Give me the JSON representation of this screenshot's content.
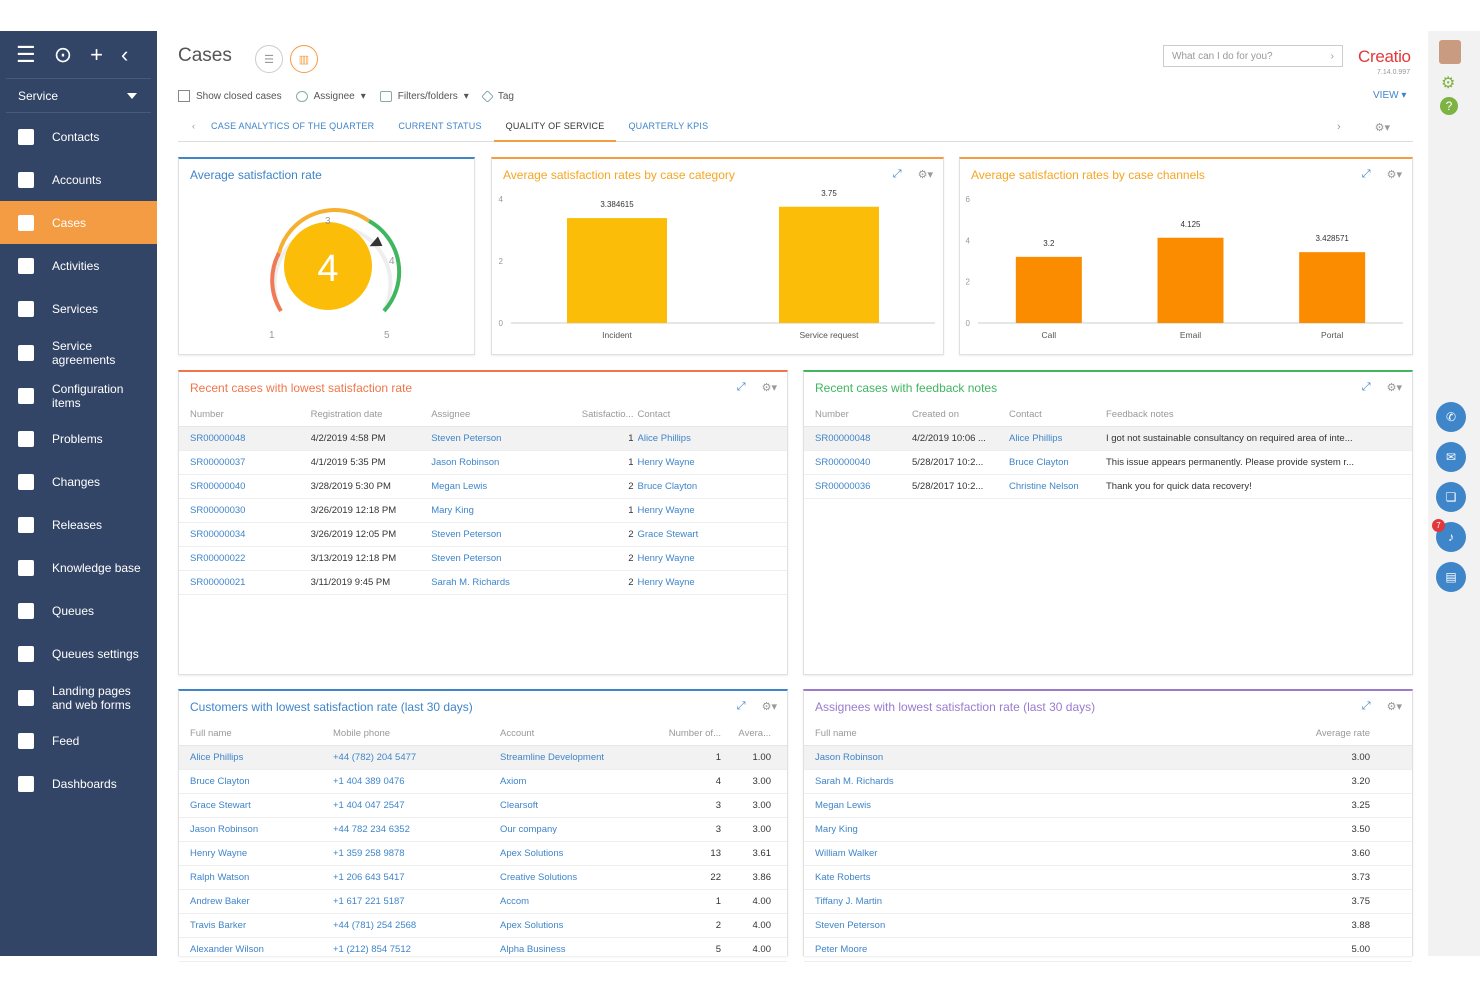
{
  "sidebar": {
    "workplace": "Service",
    "items": [
      {
        "label": "Contacts",
        "icon": "user-icon"
      },
      {
        "label": "Accounts",
        "icon": "building-icon"
      },
      {
        "label": "Cases",
        "icon": "exclamation-icon"
      },
      {
        "label": "Activities",
        "icon": "flag-icon"
      },
      {
        "label": "Services",
        "icon": "clipboard-icon"
      },
      {
        "label": "Service agreements",
        "icon": "document-icon"
      },
      {
        "label": "Configuration items",
        "icon": "blocks-icon"
      },
      {
        "label": "Problems",
        "icon": "search-chat-icon"
      },
      {
        "label": "Changes",
        "icon": "edit-icon"
      },
      {
        "label": "Releases",
        "icon": "docs-icon"
      },
      {
        "label": "Knowledge base",
        "icon": "book-icon"
      },
      {
        "label": "Queues",
        "icon": "queue-icon"
      },
      {
        "label": "Queues settings",
        "icon": "queue-settings-icon"
      },
      {
        "label": "Landing pages and web forms",
        "icon": "target-icon"
      },
      {
        "label": "Feed",
        "icon": "chat-icon"
      },
      {
        "label": "Dashboards",
        "icon": "bar-chart-icon"
      }
    ],
    "active": "Cases"
  },
  "header": {
    "title": "Cases",
    "search_placeholder": "What can I do for you?",
    "logo": "Creatio",
    "version": "7.14.0.997",
    "view": "VIEW"
  },
  "filters": {
    "show_closed": "Show closed cases",
    "assignee": "Assignee",
    "filters_folders": "Filters/folders",
    "tag": "Tag"
  },
  "tabs": [
    "CASE ANALYTICS OF THE QUARTER",
    "CURRENT STATUS",
    "QUALITY OF SERVICE",
    "QUARTERLY KPIS"
  ],
  "active_tab": "QUALITY OF SERVICE",
  "gauge": {
    "title": "Average satisfaction rate",
    "value": "4",
    "ticks": [
      "1",
      "3",
      "4",
      "5"
    ],
    "fraction": 0.75
  },
  "chart1": {
    "title": "Average satisfaction rates by case category"
  },
  "chart2": {
    "title": "Average satisfaction rates by case channels"
  },
  "chart_data": [
    {
      "type": "bar",
      "title": "Average satisfaction rates by case category",
      "categories": [
        "Incident",
        "Service request"
      ],
      "values": [
        3.384615,
        3.75
      ],
      "labels": [
        "3.384615",
        "3.75"
      ],
      "yticks": [
        "0",
        "2",
        "4"
      ],
      "ylim": [
        0,
        4
      ],
      "color": "#fbbd08"
    },
    {
      "type": "bar",
      "title": "Average satisfaction rates by case channels",
      "categories": [
        "Call",
        "Email",
        "Portal"
      ],
      "values": [
        3.2,
        4.125,
        3.428571
      ],
      "labels": [
        "3.2",
        "4.125",
        "3.428571"
      ],
      "yticks": [
        "0",
        "2",
        "4",
        "6"
      ],
      "ylim": [
        0,
        6
      ],
      "color": "#fb8c00"
    }
  ],
  "recent_cases": {
    "title": "Recent cases with lowest satisfaction rate",
    "headers": [
      "Number",
      "Registration date",
      "Assignee",
      "Satisfactio...",
      "Contact"
    ],
    "rows": [
      [
        "SR00000048",
        "4/2/2019 4:58 PM",
        "Steven Peterson",
        "1",
        "Alice Phillips"
      ],
      [
        "SR00000037",
        "4/1/2019 5:35 PM",
        "Jason Robinson",
        "1",
        "Henry Wayne"
      ],
      [
        "SR00000040",
        "3/28/2019 5:30 PM",
        "Megan Lewis",
        "2",
        "Bruce Clayton"
      ],
      [
        "SR00000030",
        "3/26/2019 12:18 PM",
        "Mary King",
        "1",
        "Henry Wayne"
      ],
      [
        "SR00000034",
        "3/26/2019 12:05 PM",
        "Steven Peterson",
        "2",
        "Grace Stewart"
      ],
      [
        "SR00000022",
        "3/13/2019 12:18 PM",
        "Steven Peterson",
        "2",
        "Henry Wayne"
      ],
      [
        "SR00000021",
        "3/11/2019 9:45 PM",
        "Sarah M. Richards",
        "2",
        "Henry Wayne"
      ]
    ]
  },
  "feedback": {
    "title": "Recent cases with feedback notes",
    "headers": [
      "Number",
      "Created on",
      "Contact",
      "Feedback notes"
    ],
    "rows": [
      [
        "SR00000048",
        "4/2/2019 10:06 ...",
        "Alice Phillips",
        "I got not sustainable consultancy on required area of inte..."
      ],
      [
        "SR00000040",
        "5/28/2017 10:2...",
        "Bruce Clayton",
        "This issue appears permanently. Please provide system r..."
      ],
      [
        "SR00000036",
        "5/28/2017 10:2...",
        "Christine Nelson",
        "Thank you for quick data recovery!"
      ]
    ]
  },
  "customers": {
    "title": "Customers with lowest satisfaction rate (last 30 days)",
    "headers": [
      "Full name",
      "Mobile phone",
      "Account",
      "Number of...",
      "Avera..."
    ],
    "rows": [
      [
        "Alice Phillips",
        "+44 (782) 204 5477",
        "Streamline Development",
        "1",
        "1.00"
      ],
      [
        "Bruce Clayton",
        "+1 404 389 0476",
        "Axiom",
        "4",
        "3.00"
      ],
      [
        "Grace Stewart",
        "+1 404 047 2547",
        "Clearsoft",
        "3",
        "3.00"
      ],
      [
        "Jason Robinson",
        "+44 782 234 6352",
        "Our company",
        "3",
        "3.00"
      ],
      [
        "Henry Wayne",
        "+1 359 258 9878",
        "Apex Solutions",
        "13",
        "3.61"
      ],
      [
        "Ralph Watson",
        "+1 206 643 5417",
        "Creative Solutions",
        "22",
        "3.86"
      ],
      [
        "Andrew Baker",
        "+1 617 221 5187",
        "Accom",
        "1",
        "4.00"
      ],
      [
        "Travis Barker",
        "+44 (781) 254 2568",
        "Apex Solutions",
        "2",
        "4.00"
      ],
      [
        "Alexander Wilson",
        "+1 (212) 854 7512",
        "Alpha Business",
        "5",
        "4.00"
      ]
    ]
  },
  "assignees": {
    "title": "Assignees with lowest satisfaction rate (last 30 days)",
    "headers": [
      "Full name",
      "Average rate"
    ],
    "rows": [
      [
        "Jason Robinson",
        "3.00"
      ],
      [
        "Sarah M. Richards",
        "3.20"
      ],
      [
        "Megan Lewis",
        "3.25"
      ],
      [
        "Mary King",
        "3.50"
      ],
      [
        "William Walker",
        "3.60"
      ],
      [
        "Kate Roberts",
        "3.73"
      ],
      [
        "Tiffany J. Martin",
        "3.75"
      ],
      [
        "Steven Peterson",
        "3.88"
      ],
      [
        "Peter Moore",
        "5.00"
      ]
    ]
  },
  "rightbar": {
    "notification_count": "7"
  }
}
